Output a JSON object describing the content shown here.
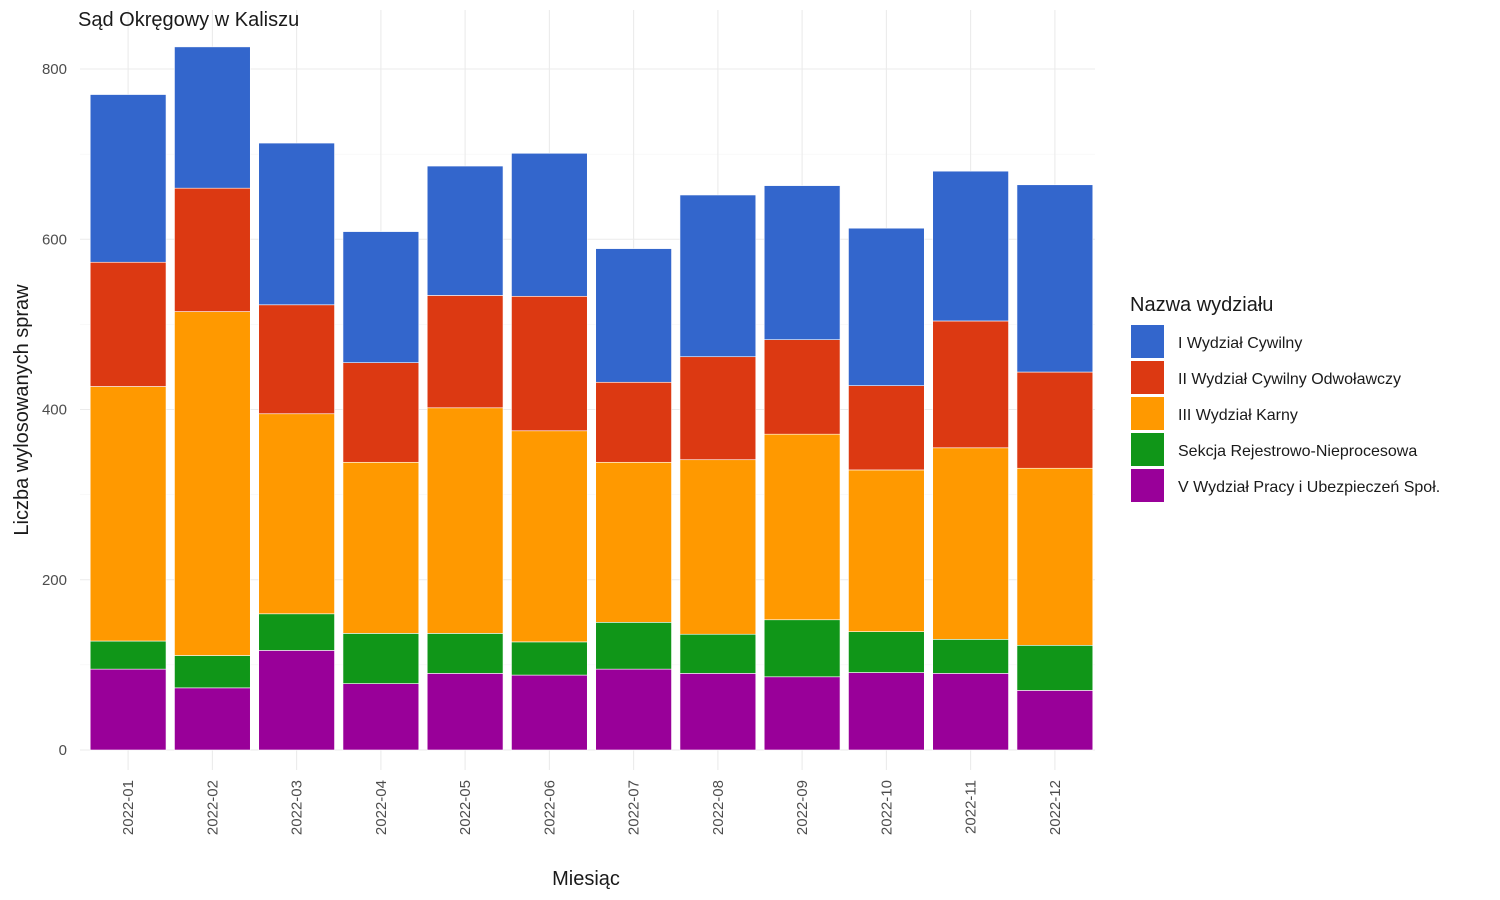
{
  "chart_data": {
    "type": "bar",
    "stacked": true,
    "title": "Sąd Okręgowy w Kaliszu",
    "xlabel": "Miesiąc",
    "ylabel": "Liczba wylosowanych spraw",
    "ylim": [
      0,
      850
    ],
    "yticks": [
      0,
      200,
      400,
      600,
      800
    ],
    "grid": true,
    "legend_title": "Nazwa wydziału",
    "legend_position": "right",
    "categories": [
      "2022-01",
      "2022-02",
      "2022-03",
      "2022-04",
      "2022-05",
      "2022-06",
      "2022-07",
      "2022-08",
      "2022-09",
      "2022-10",
      "2022-11",
      "2022-12"
    ],
    "series": [
      {
        "name": "V Wydział Pracy i Ubezpieczeń Społ.",
        "color": "#990099",
        "values": [
          95,
          73,
          117,
          78,
          90,
          88,
          95,
          90,
          86,
          91,
          90,
          70
        ]
      },
      {
        "name": "Sekcja Rejestrowo-Nieprocesowa",
        "color": "#109618",
        "values": [
          33,
          38,
          43,
          59,
          47,
          39,
          55,
          46,
          67,
          48,
          40,
          53
        ]
      },
      {
        "name": "III Wydział Karny",
        "color": "#ff9900",
        "values": [
          299,
          404,
          235,
          201,
          265,
          248,
          188,
          205,
          218,
          190,
          225,
          208
        ]
      },
      {
        "name": "II Wydział Cywilny Odwoławczy",
        "color": "#dc3912",
        "values": [
          146,
          145,
          128,
          117,
          132,
          158,
          94,
          121,
          111,
          99,
          149,
          113
        ]
      },
      {
        "name": "I Wydział Cywilny",
        "color": "#3366cc",
        "values": [
          197,
          166,
          190,
          154,
          152,
          168,
          157,
          190,
          181,
          185,
          176,
          220
        ]
      }
    ]
  }
}
